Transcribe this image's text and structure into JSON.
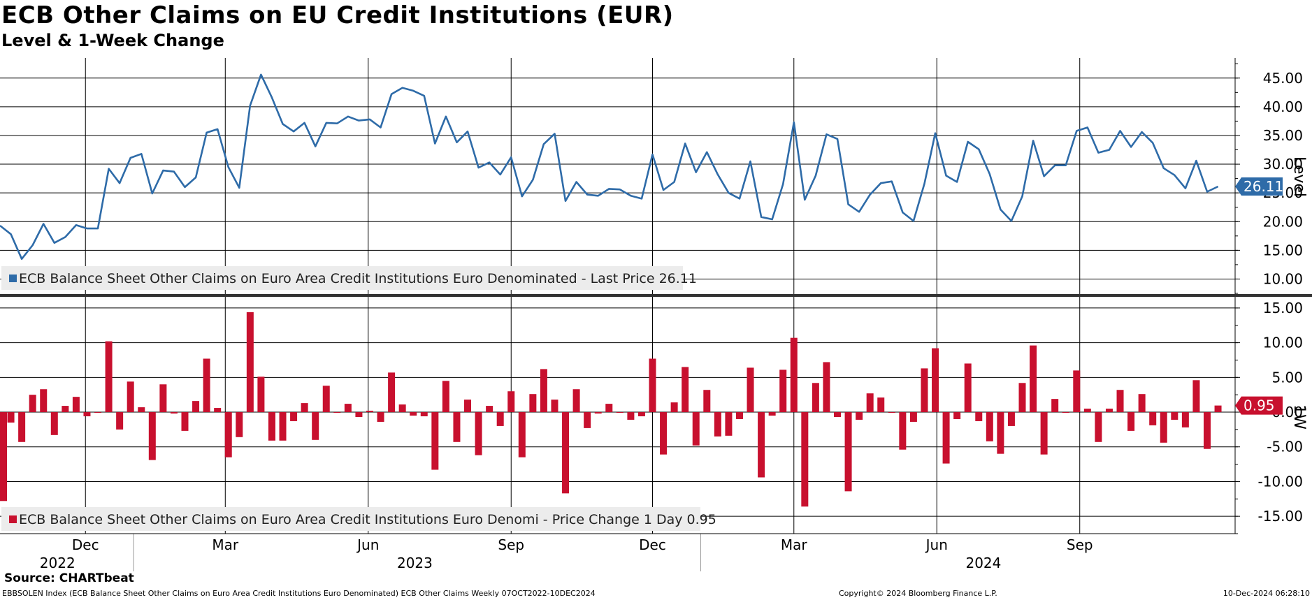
{
  "header": {
    "title": "ECB Other Claims on EU Credit Institutions (EUR)",
    "subtitle": "Level & 1-Week Change"
  },
  "chart_data": [
    {
      "type": "line",
      "ylabel": "Level",
      "ylim": [
        7.5,
        48.5
      ],
      "yticks": [
        10,
        15,
        20,
        25,
        30,
        35,
        40,
        45
      ],
      "ytick_labels": [
        "10.00",
        "15.00",
        "20.00",
        "25.00",
        "30.00",
        "35.00",
        "40.00",
        "45.00"
      ],
      "grid": true,
      "legend": "bottom-left",
      "color": "#2e6ba8",
      "series": [
        {
          "name": "ECB Balance Sheet Other Claims on Euro Area Credit Institutions Euro Denominated - Last Price 26.11",
          "start": "2022-10-07",
          "freq": "weekly",
          "values": [
            19.3,
            17.8,
            13.5,
            15.9,
            19.6,
            16.3,
            17.3,
            19.4,
            18.8,
            18.8,
            29.2,
            26.7,
            31.1,
            31.8,
            24.9,
            28.9,
            28.7,
            26.0,
            27.7,
            35.5,
            36.1,
            29.5,
            25.9,
            40.2,
            45.6,
            41.6,
            37.0,
            35.7,
            37.2,
            33.1,
            37.2,
            37.1,
            38.3,
            37.6,
            37.8,
            36.4,
            42.2,
            43.3,
            42.8,
            41.9,
            33.6,
            38.3,
            33.8,
            35.7,
            29.4,
            30.3,
            28.2,
            31.2,
            24.4,
            27.3,
            33.5,
            35.3,
            23.6,
            26.9,
            24.7,
            24.5,
            25.7,
            25.6,
            24.5,
            24.0,
            31.7,
            25.5,
            26.9,
            33.6,
            28.6,
            32.1,
            28.2,
            25.0,
            24.0,
            30.5,
            20.8,
            20.4,
            26.5,
            37.3,
            23.8,
            28.0,
            35.2,
            34.4,
            23.0,
            21.7,
            24.7,
            26.7,
            27.0,
            21.6,
            20.1,
            26.6,
            35.4,
            28.0,
            26.9,
            33.9,
            32.6,
            28.3,
            22.1,
            20.1,
            24.4,
            34.1,
            27.9,
            29.8,
            29.8,
            35.8,
            36.4,
            32.0,
            32.5,
            35.8,
            33.0,
            35.6,
            33.7,
            29.3,
            28.1,
            25.8,
            30.6,
            25.2,
            26.11
          ]
        }
      ],
      "last_value_label": "26.11"
    },
    {
      "type": "bar",
      "ylabel": "1W",
      "ylim": [
        -17.5,
        16.5
      ],
      "yticks": [
        -15,
        -10,
        -5,
        0,
        5,
        10,
        15
      ],
      "ytick_labels": [
        "-15.00",
        "-10.00",
        "-5.00",
        "0.00",
        "5.00",
        "10.00",
        "15.00"
      ],
      "grid": true,
      "legend": "bottom-left",
      "color": "#c8102e",
      "series": [
        {
          "name": "ECB Balance Sheet Other Claims on Euro Area Credit Institutions Euro Denomi - Price Change 1 Day 0.95",
          "start": "2022-10-07",
          "freq": "weekly",
          "values": [
            -12.8,
            -1.5,
            -4.3,
            2.5,
            3.3,
            -3.3,
            0.9,
            2.2,
            -0.6,
            0.0,
            10.2,
            -2.5,
            4.4,
            0.7,
            -6.9,
            4.0,
            -0.2,
            -2.7,
            1.6,
            7.7,
            0.6,
            -6.5,
            -3.6,
            14.4,
            5.1,
            -4.1,
            -4.1,
            -1.3,
            1.3,
            -4.0,
            3.8,
            -0.1,
            1.2,
            -0.7,
            0.2,
            -1.4,
            5.7,
            1.1,
            -0.5,
            -0.6,
            -8.3,
            4.5,
            -4.3,
            1.8,
            -6.2,
            0.9,
            -2.0,
            3.0,
            -6.5,
            2.6,
            6.2,
            1.8,
            -11.7,
            3.3,
            -2.3,
            -0.2,
            1.2,
            -0.1,
            -1.1,
            -0.6,
            7.7,
            -6.1,
            1.4,
            6.5,
            -4.8,
            3.2,
            -3.5,
            -3.4,
            -1.0,
            6.4,
            -9.4,
            -0.5,
            6.1,
            10.7,
            -13.6,
            4.2,
            7.2,
            -0.7,
            -11.4,
            -1.1,
            2.7,
            2.1,
            0.0,
            -5.4,
            -1.4,
            6.3,
            9.2,
            -7.4,
            -1.0,
            7.0,
            -1.3,
            -4.2,
            -6.0,
            -2.0,
            4.2,
            9.6,
            -6.1,
            1.9,
            0.0,
            6.0,
            0.5,
            -4.3,
            0.5,
            3.2,
            -2.7,
            2.6,
            -1.9,
            -4.4,
            -1.1,
            -2.2,
            4.6,
            -5.3,
            0.95
          ]
        }
      ],
      "last_value_label": "0.95"
    }
  ],
  "xaxis": {
    "months": [
      {
        "label": "Dec",
        "date": "2022-12-01"
      },
      {
        "label": "Mar",
        "date": "2023-03-01"
      },
      {
        "label": "Jun",
        "date": "2023-06-01"
      },
      {
        "label": "Sep",
        "date": "2023-09-01"
      },
      {
        "label": "Dec",
        "date": "2023-12-01"
      },
      {
        "label": "Mar",
        "date": "2024-03-01"
      },
      {
        "label": "Jun",
        "date": "2024-06-01"
      },
      {
        "label": "Sep",
        "date": "2024-09-01"
      }
    ],
    "years": [
      {
        "label": "2022",
        "date": "2022-11-13"
      },
      {
        "label": "2023",
        "date": "2023-07-01"
      },
      {
        "label": "2024",
        "date": "2024-07-01"
      }
    ],
    "year_boundaries": [
      "2023-01-01",
      "2024-01-01"
    ]
  },
  "footer": {
    "source": "Source: CHARTbeat",
    "description": "EBBSOLEN Index (ECB Balance Sheet Other Claims on Euro Area Credit Institutions Euro Denominated) ECB Other Claims  Weekly 07OCT2022-10DEC2024",
    "copyright": "Copyright© 2024 Bloomberg Finance L.P.",
    "timestamp": "10-Dec-2024 06:28:10"
  }
}
